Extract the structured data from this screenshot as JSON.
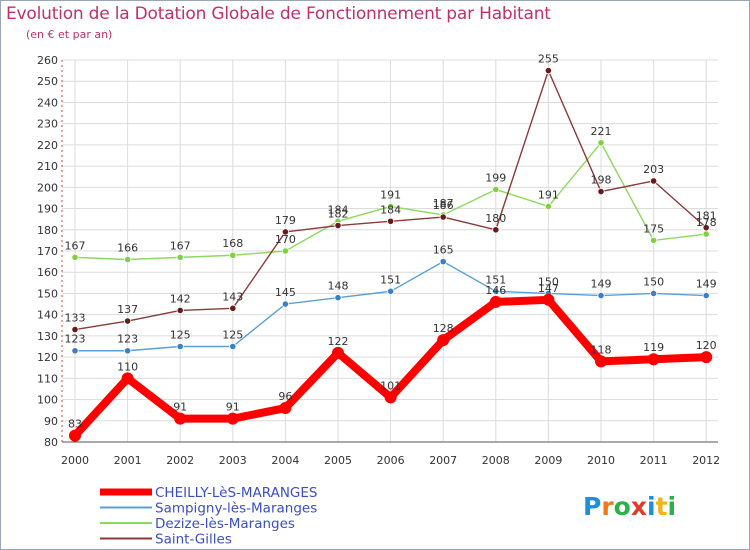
{
  "title": "Evolution de la Dotation Globale de Fonctionnement par Habitant",
  "subtitle": "(en € et par an)",
  "logo": {
    "letters": [
      "P",
      "r",
      "o",
      "x",
      "i",
      "t",
      "i"
    ],
    "colors": [
      "#1f8fd8",
      "#f07a1a",
      "#2ab24a",
      "#e23b2e",
      "#1f8fd8",
      "#f0b41a",
      "#2ab24a"
    ]
  },
  "chart_data": {
    "type": "line",
    "title": "Evolution de la Dotation Globale de Fonctionnement par Habitant",
    "subtitle": "(en € et par an)",
    "xlabel": "",
    "ylabel": "",
    "ylim": [
      80,
      260
    ],
    "ytick_step": 10,
    "grid": true,
    "legend_position": "bottom-left",
    "categories": [
      "2000",
      "2001",
      "2002",
      "2003",
      "2004",
      "2005",
      "2006",
      "2007",
      "2008",
      "2009",
      "2010",
      "2011",
      "2012"
    ],
    "series": [
      {
        "name": "CHEILLY-LèS-MARANGES",
        "color": "#ff0000",
        "marker_color": "#ff0000",
        "emphasis": true,
        "values": [
          83,
          110,
          91,
          91,
          96,
          122,
          101,
          128,
          146,
          147,
          118,
          119,
          120
        ]
      },
      {
        "name": "Sampigny-lès-Maranges",
        "color": "#5aa0d8",
        "marker_color": "#3a80c8",
        "emphasis": false,
        "values": [
          123,
          123,
          125,
          125,
          145,
          148,
          151,
          165,
          151,
          150,
          149,
          150,
          149
        ]
      },
      {
        "name": "Dezize-lès-Maranges",
        "color": "#8fd860",
        "marker_color": "#80d040",
        "emphasis": false,
        "values": [
          167,
          166,
          167,
          168,
          170,
          184,
          191,
          187,
          199,
          191,
          221,
          175,
          178
        ]
      },
      {
        "name": "Saint-Gilles",
        "color": "#8a3a3a",
        "marker_color": "#6a1a1a",
        "emphasis": false,
        "values": [
          133,
          137,
          142,
          143,
          179,
          182,
          184,
          186,
          180,
          255,
          198,
          203,
          181
        ]
      }
    ]
  }
}
